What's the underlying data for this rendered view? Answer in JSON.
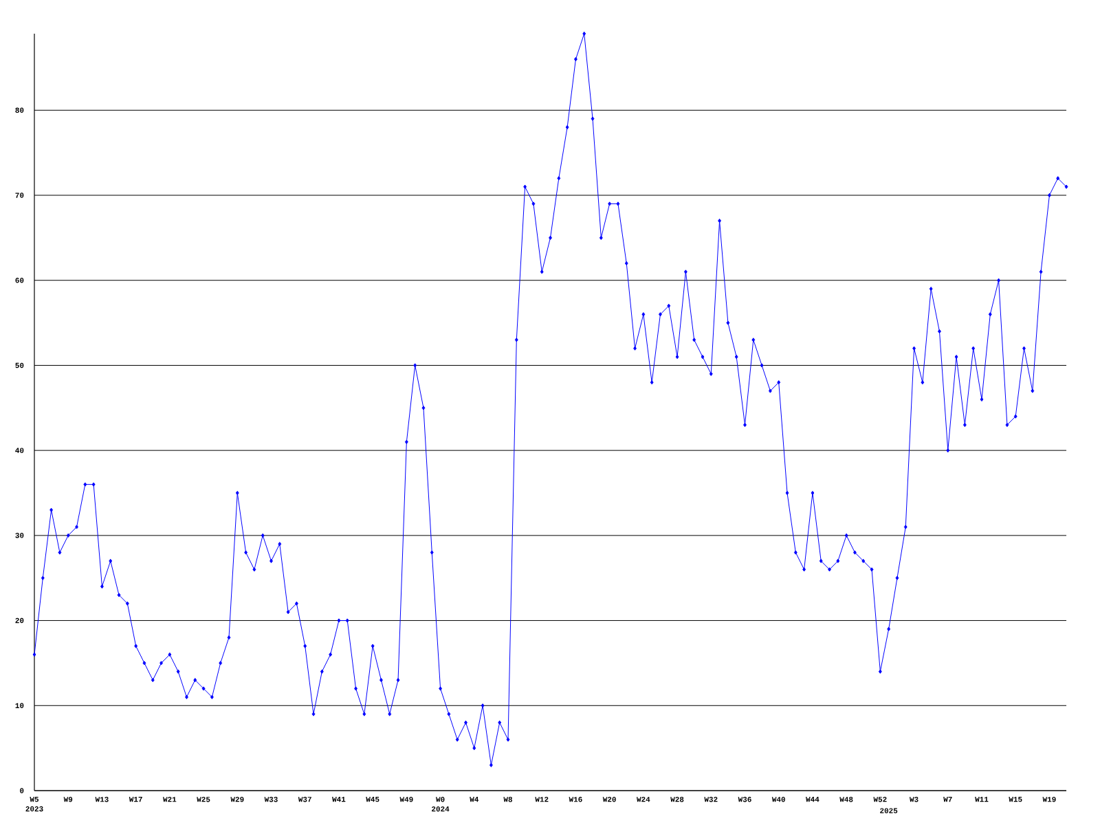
{
  "chart_data": {
    "type": "line",
    "color": "#0000ff",
    "marker": "diamond",
    "line_style": "solid",
    "grid": "y",
    "categories": [
      "W5 2023",
      null,
      null,
      null,
      "W9",
      null,
      null,
      null,
      "W13",
      null,
      null,
      null,
      "W17",
      null,
      null,
      null,
      "W21",
      null,
      null,
      null,
      "W25",
      null,
      null,
      null,
      "W29",
      null,
      null,
      null,
      "W33",
      null,
      null,
      null,
      "W37",
      null,
      null,
      null,
      "W41",
      null,
      null,
      null,
      "W45",
      null,
      null,
      null,
      "W49",
      null,
      null,
      null,
      "W0 2024",
      null,
      null,
      null,
      "W4",
      null,
      null,
      null,
      "W8",
      null,
      null,
      null,
      "W12",
      null,
      null,
      null,
      "W16",
      null,
      null,
      null,
      "W20",
      null,
      null,
      null,
      "W24",
      null,
      null,
      null,
      "W28",
      null,
      null,
      null,
      "W32",
      null,
      null,
      null,
      "W36",
      null,
      null,
      null,
      "W40",
      null,
      null,
      null,
      "W44",
      null,
      null,
      null,
      "W48",
      null,
      null,
      null,
      "W52",
      "2025",
      null,
      null,
      "W3",
      null,
      null,
      null,
      "W7",
      null,
      null,
      null,
      "W11",
      null,
      null,
      null,
      "W15",
      null,
      null,
      null,
      "W19",
      null,
      null
    ],
    "values": [
      16,
      25,
      33,
      28,
      30,
      31,
      36,
      36,
      24,
      27,
      23,
      22,
      17,
      15,
      13,
      15,
      16,
      14,
      11,
      13,
      12,
      11,
      15,
      18,
      35,
      28,
      26,
      30,
      27,
      29,
      21,
      22,
      17,
      9,
      14,
      16,
      20,
      20,
      12,
      9,
      17,
      13,
      9,
      13,
      41,
      50,
      45,
      28,
      12,
      9,
      6,
      8,
      5,
      10,
      3,
      8,
      6,
      53,
      71,
      69,
      61,
      65,
      72,
      78,
      86,
      89,
      79,
      65,
      69,
      69,
      62,
      52,
      56,
      48,
      56,
      57,
      51,
      61,
      53,
      51,
      49,
      67,
      55,
      51,
      43,
      53,
      50,
      47,
      48,
      35,
      28,
      26,
      35,
      27,
      26,
      27,
      30,
      28,
      27,
      26,
      14,
      19,
      25,
      31,
      52,
      48,
      59,
      54,
      40,
      51,
      43,
      52,
      46,
      56,
      60,
      43,
      44,
      52,
      47,
      61,
      70,
      72,
      71
    ],
    "ylim": [
      0,
      89
    ],
    "yticks": [
      0,
      10,
      20,
      30,
      40,
      50,
      60,
      70,
      80
    ]
  }
}
